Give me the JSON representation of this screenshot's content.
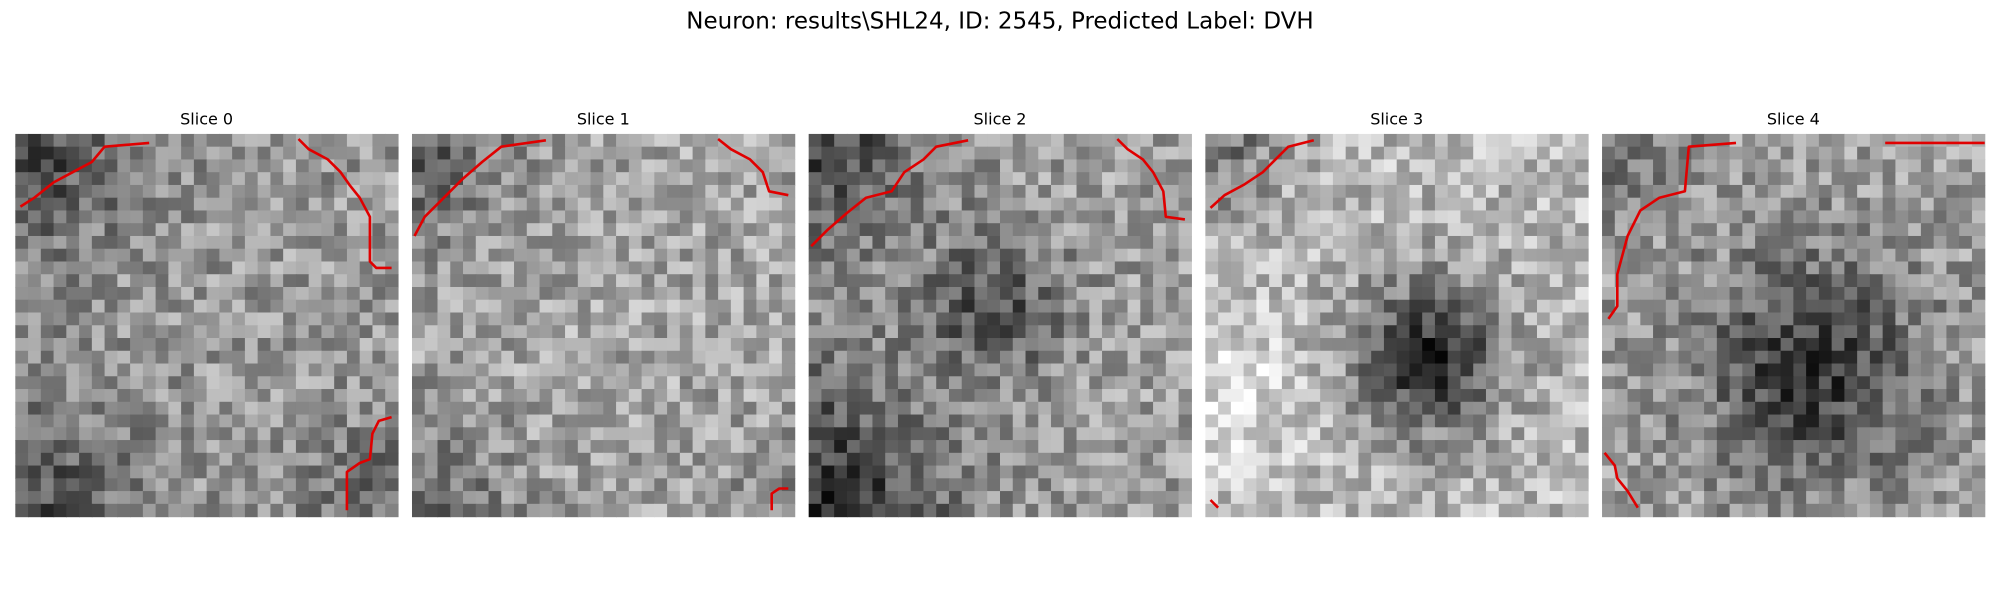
{
  "figure": {
    "title": "Neuron: results\\SHL24, ID: 2545, Predicted Label: DVH",
    "panels": [
      {
        "title": "Slice 0"
      },
      {
        "title": "Slice 1"
      },
      {
        "title": "Slice 2"
      },
      {
        "title": "Slice 3"
      },
      {
        "title": "Slice 4"
      }
    ]
  }
}
